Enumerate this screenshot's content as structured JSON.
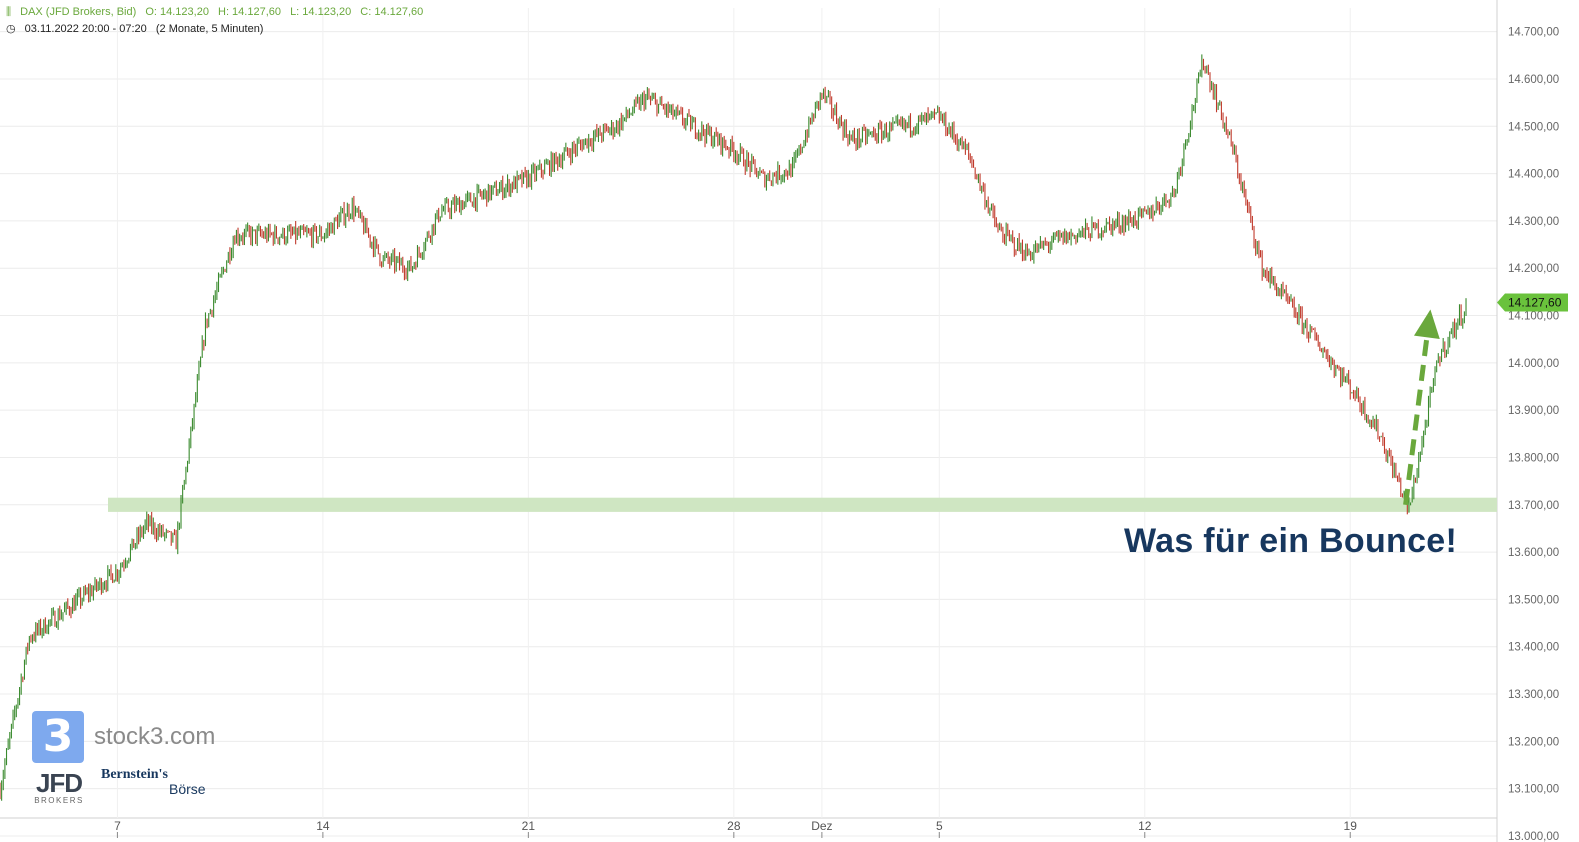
{
  "header": {
    "symbol": "DAX (JFD Brokers, Bid)",
    "open": "O: 14.123,20",
    "high": "H: 14.127,60",
    "low": "L: 14.123,20",
    "close": "C: 14.127,60",
    "range": "03.11.2022 20:00 - 07:20",
    "period": "(2 Monate, 5 Minuten)"
  },
  "headline": "Was für ein Bounce!",
  "branding": {
    "stock3": "stock3.com",
    "stock3_mark": "3",
    "jfd": "JFD",
    "jfd_sub": "BROKERS",
    "bernstein_1": "Bernstein's",
    "bernstein_2": "Börse"
  },
  "colors": {
    "up": "#3a8a2e",
    "down": "#c0392b",
    "support_zone": "#cfe6c2",
    "arrow": "#6aa83c",
    "price_tag": "#6ac23c",
    "headline": "#17375e"
  },
  "chart_data": {
    "type": "line",
    "title": "",
    "ylabel": "",
    "ylim": [
      13000,
      14750
    ],
    "y_ticks": [
      "13.000,00",
      "13.100,00",
      "13.200,00",
      "13.300,00",
      "13.400,00",
      "13.500,00",
      "13.600,00",
      "13.700,00",
      "13.800,00",
      "13.900,00",
      "14.000,00",
      "14.100,00",
      "14.200,00",
      "14.300,00",
      "14.400,00",
      "14.500,00",
      "14.600,00",
      "14.700,00"
    ],
    "x_ticks": [
      "7",
      "14",
      "21",
      "28",
      "Dez",
      "5",
      "12",
      "19"
    ],
    "last_price": "14.127,60",
    "support_zone": [
      13685,
      13715
    ],
    "series": [
      {
        "x": [
          "2022-11-03",
          "2022-11-04",
          "2022-11-07",
          "2022-11-08",
          "2022-11-09",
          "2022-11-10",
          "2022-11-11",
          "2022-11-14",
          "2022-11-15",
          "2022-11-16",
          "2022-11-17",
          "2022-11-18",
          "2022-11-21",
          "2022-11-22",
          "2022-11-23",
          "2022-11-24",
          "2022-11-25",
          "2022-11-28",
          "2022-11-29",
          "2022-11-30",
          "2022-12-01",
          "2022-12-02",
          "2022-12-05",
          "2022-12-06",
          "2022-12-07",
          "2022-12-08",
          "2022-12-09",
          "2022-12-12",
          "2022-12-13",
          "2022-12-14",
          "2022-12-15",
          "2022-12-16",
          "2022-12-19",
          "2022-12-20",
          "2022-12-21",
          "2022-12-22",
          "2022-12-23"
        ],
        "values": [
          13100,
          13420,
          13560,
          13660,
          13620,
          14080,
          14270,
          14270,
          14330,
          14220,
          14200,
          14320,
          14390,
          14430,
          14470,
          14500,
          14560,
          14450,
          14390,
          14410,
          14570,
          14470,
          14520,
          14440,
          14280,
          14230,
          14260,
          14310,
          14360,
          14640,
          14450,
          14200,
          13950,
          13850,
          13690,
          14010,
          14127.6
        ]
      }
    ],
    "annotation_arrow": {
      "from": [
        "2022-12-20",
        13700
      ],
      "to": [
        "2022-12-23",
        14130
      ]
    }
  }
}
